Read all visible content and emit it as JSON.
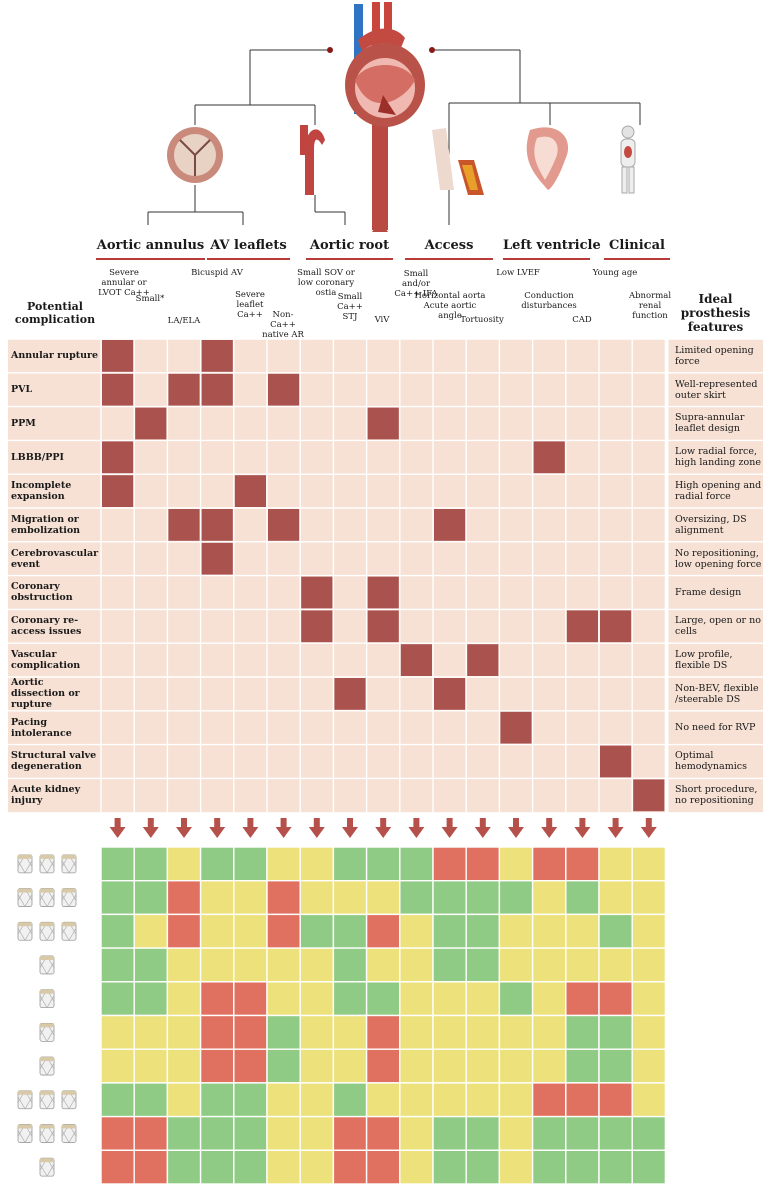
{
  "categories": [
    {
      "name": "Aortic annulus"
    },
    {
      "name": "AV leaflets"
    },
    {
      "name": "Aortic root"
    },
    {
      "name": "Access"
    },
    {
      "name": "Left ventricle"
    },
    {
      "name": "Clinical"
    }
  ],
  "left_header": "Potential complication",
  "right_header": "Ideal prosthesis features",
  "risk_factors": [
    {
      "text": "Severe annular or LVOT Ca++"
    },
    {
      "text": "Small*"
    },
    {
      "text": "LA/ELA"
    },
    {
      "text": "Bicuspid AV"
    },
    {
      "text": "Severe leaflet Ca++"
    },
    {
      "text": "Non-Ca++ native AR"
    },
    {
      "text": "Small SOV or low coronary ostia"
    },
    {
      "text": "Small Ca++ STJ"
    },
    {
      "text": "ViV"
    },
    {
      "text": "Small and/or Ca++ IFA"
    },
    {
      "text": "Horizontal aorta Acute aortic angle"
    },
    {
      "text": "Tortuosity"
    },
    {
      "text": "Low LVEF"
    },
    {
      "text": "Conduction disturbances"
    },
    {
      "text": "CAD"
    },
    {
      "text": "Young age"
    },
    {
      "text": "Abnormal renal function"
    }
  ],
  "complications": [
    {
      "label": "Annular rupture",
      "feature": "Limited opening force",
      "marks": [
        0,
        3
      ]
    },
    {
      "label": "PVL",
      "feature": "Well-represented outer skirt",
      "marks": [
        0,
        2,
        3,
        5
      ]
    },
    {
      "label": "PPM",
      "feature": "Supra-annular leaflet design",
      "marks": [
        1,
        8
      ]
    },
    {
      "label": "LBBB/PPI",
      "feature": "Low radial force, high landing zone",
      "marks": [
        0,
        13
      ]
    },
    {
      "label": "Incomplete expansion",
      "feature": "High opening and radial force",
      "marks": [
        0,
        4
      ]
    },
    {
      "label": "Migration or embolization",
      "feature": "Oversizing, DS alignment",
      "marks": [
        2,
        3,
        5,
        10
      ]
    },
    {
      "label": "Cerebrovascular event",
      "feature": "No repositioning, low opening force",
      "marks": [
        3
      ]
    },
    {
      "label": "Coronary obstruction",
      "feature": "Frame design",
      "marks": [
        6,
        8
      ]
    },
    {
      "label": "Coronary re-access issues",
      "feature": "Large, open or no cells",
      "marks": [
        6,
        8,
        14,
        15
      ]
    },
    {
      "label": "Vascular complication",
      "feature": "Low profile, flexible DS",
      "marks": [
        9,
        11
      ]
    },
    {
      "label": "Aortic dissection or rupture",
      "feature": "Non-BEV, flexible /steerable DS",
      "marks": [
        7,
        10
      ]
    },
    {
      "label": "Pacing intolerance",
      "feature": "No need for RVP",
      "marks": [
        12
      ]
    },
    {
      "label": "Structural valve degeneration",
      "feature": "Optimal hemodynamics",
      "marks": [
        15
      ]
    },
    {
      "label": "Acute kidney injury",
      "feature": "Short procedure, no repositioning",
      "marks": [
        16
      ]
    }
  ],
  "valve_rows": [
    {
      "icon": "valve-trio-icon",
      "cells": "GGYGGYYGGGRRYRRYY"
    },
    {
      "icon": "valve-trio-icon",
      "cells": "GGRYYRYYYGGGGYGYY"
    },
    {
      "icon": "valve-trio-icon",
      "cells": "GYRYYRGGRYGGYYYGY"
    },
    {
      "icon": "valve-single-icon",
      "cells": "GGYYYYYGYYGGYYYYY"
    },
    {
      "icon": "valve-single-icon",
      "cells": "GGYRRYYGGYYYGYRRY"
    },
    {
      "icon": "valve-single-icon",
      "cells": "YYYRRGYYRYYYYYGGY"
    },
    {
      "icon": "valve-single-icon",
      "cells": "YYYRRGYYRYYYYYGGY"
    },
    {
      "icon": "valve-trio-icon",
      "cells": "GGYGGYYGYYYYYRRRY"
    },
    {
      "icon": "valve-trio-icon",
      "cells": "RRGGGYYRRYGGYGGGG"
    },
    {
      "icon": "valve-single-icon",
      "cells": "RRGGGYYRRYGGYGGGG"
    }
  ],
  "colors": {
    "matrix_bg": "#f6e1d4",
    "mark": "#a9524e",
    "green": "#8fcb84",
    "yellow": "#ece17a",
    "red": "#e07060",
    "arrow": "#b5504a",
    "rule": "#b83b37"
  }
}
